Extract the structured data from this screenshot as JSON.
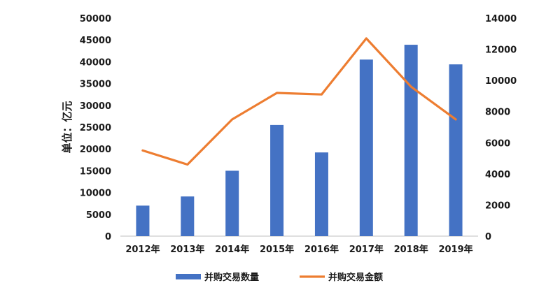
{
  "chart_data": {
    "type": "bar+line",
    "categories": [
      "2012年",
      "2013年",
      "2014年",
      "2015年",
      "2016年",
      "2017年",
      "2018年",
      "2019年"
    ],
    "ylabel": "单位：亿元",
    "ylim_left": [
      0,
      50000
    ],
    "yticks_left": [
      0,
      5000,
      10000,
      15000,
      20000,
      25000,
      30000,
      35000,
      40000,
      45000,
      50000
    ],
    "ylim_right": [
      0,
      14000
    ],
    "yticks_right": [
      0,
      2000,
      4000,
      6000,
      8000,
      10000,
      12000,
      14000
    ],
    "grid": false,
    "legend_position": "bottom",
    "series": [
      {
        "name": "并购交易数量",
        "type": "bar",
        "axis": "left",
        "color": "#4472c4",
        "values": [
          7000,
          9100,
          15000,
          25500,
          19200,
          40500,
          43900,
          39400
        ]
      },
      {
        "name": "并购交易金额",
        "type": "line",
        "axis": "right",
        "color": "#ed7d31",
        "values": [
          5500,
          4600,
          7500,
          9200,
          9100,
          12700,
          9600,
          7500
        ]
      }
    ]
  }
}
